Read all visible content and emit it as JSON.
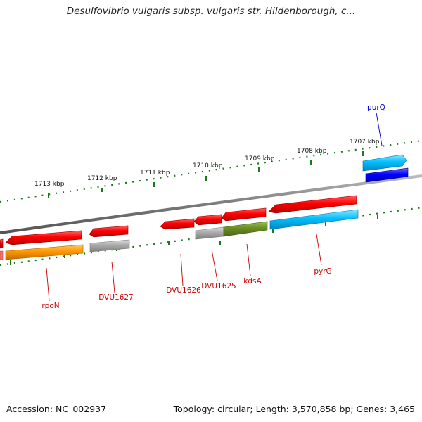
{
  "title": "Desulfovibrio vulgaris subsp. vulgaris str. Hildenborough, c...",
  "footer": {
    "accession": "Accession: NC_002937",
    "topology": "Topology: circular; Length: 3,570,858 bp; Genes: 3,465"
  },
  "ruler_labels": [
    "1713 kbp",
    "1712 kbp",
    "1711 kbp",
    "1710 kbp",
    "1709 kbp",
    "1708 kbp",
    "1707 kbp"
  ],
  "genes": [
    {
      "name": "rpoN",
      "strand": "-",
      "color": "#ff0000",
      "cog_color": "#ff9900"
    },
    {
      "name": "DVU1627",
      "strand": "-",
      "color": "#ff0000",
      "cog_color": "#aaaaaa"
    },
    {
      "name": "DVU1626",
      "strand": "-",
      "color": "#ff0000"
    },
    {
      "name": "DVU1625",
      "strand": "-",
      "color": "#ff0000",
      "cog_color": "#aaaaaa"
    },
    {
      "name": "kdsA",
      "strand": "-",
      "color": "#ff0000",
      "cog_color": "#6b8e23"
    },
    {
      "name": "pyrG",
      "strand": "-",
      "color": "#ff0000",
      "cog_color": "#00bfff"
    },
    {
      "name": "purQ",
      "strand": "+",
      "color": "#00bfff",
      "cog_color": "#0000ff"
    }
  ],
  "colors": {
    "backbone": "#7a7a7a",
    "tick": "#1a7a1a",
    "minus_label": "#cc0000",
    "plus_label": "#0000cc"
  }
}
